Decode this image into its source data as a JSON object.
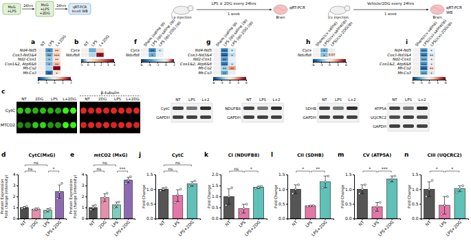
{
  "chart_data": [
    {
      "type": "heatmap",
      "panel": "a",
      "rows": [
        "Nd4-Nd5",
        "Cox3-Nd3&4",
        "Nd2-Cox1",
        "Cox1&2, Atp6&8",
        "Mt-Co2",
        "Mt-Co3"
      ],
      "columns": [
        "NT",
        "LPS",
        "L+2DG"
      ],
      "cells": [
        [
          0,
          -1.2,
          0.4
        ],
        [
          0,
          -1.0,
          0.5
        ],
        [
          0,
          -0.8,
          0.3
        ],
        [
          0,
          -0.9,
          0.6
        ],
        [
          0,
          -0.6,
          1.8
        ],
        [
          0,
          -1.5,
          0.3
        ]
      ],
      "annotations": [
        [
          null,
          "*",
          "**"
        ],
        [
          null,
          "**",
          "***"
        ],
        [
          null,
          "*",
          "**"
        ],
        [
          null,
          "*",
          "**"
        ],
        [
          null,
          null,
          "***"
        ],
        [
          null,
          "**",
          "*"
        ]
      ],
      "colorbar": {
        "range": [
          -2,
          2
        ],
        "ticks": [
          -2,
          -1,
          0,
          1,
          2
        ]
      }
    },
    {
      "type": "heatmap",
      "panel": "b",
      "rows": [
        "Cycs",
        "Ndufb8"
      ],
      "columns": [
        "NT",
        "LPS",
        "L+2DG"
      ],
      "cells": [
        [
          0,
          -0.5,
          0.8
        ],
        [
          0,
          -0.3,
          3.5
        ]
      ],
      "annotations": [
        [
          null,
          null,
          null
        ],
        [
          null,
          null,
          "*"
        ]
      ],
      "colorbar": {
        "range": [
          -1,
          4
        ],
        "ticks": [
          -1,
          0,
          1,
          2,
          3,
          4
        ]
      }
    },
    {
      "type": "heatmap",
      "panel": "f",
      "rows": [
        "Cycs",
        "Ndufb8"
      ],
      "columns": [
        "Sham (saline ip)",
        "LPS (ip)-saline (ip)",
        "LPS (ip)-2DG (ip)"
      ],
      "cells": [
        [
          0,
          -4,
          -1
        ],
        [
          0,
          -3,
          -0.5
        ]
      ],
      "annotations": [
        [
          null,
          "**",
          "*"
        ],
        [
          null,
          "*",
          null
        ]
      ],
      "colorbar": {
        "range": [
          -6,
          2
        ],
        "ticks": [
          -6,
          -4,
          -2,
          0,
          2
        ]
      }
    },
    {
      "type": "heatmap",
      "panel": "g",
      "rows": [
        "Nd4-Nd5",
        "Cox3-Nd3&4",
        "Nd2-Cox1",
        "Cox1&2, Atp6&8",
        "Mt-Co2",
        "Mt-Co3"
      ],
      "columns": [
        "Sham (saline ip)",
        "LPS (ip)-saline (ip)",
        "LPS (ip)-2DG (ip)"
      ],
      "cells": [
        [
          0,
          -4,
          -1
        ],
        [
          0,
          -4.5,
          -1.5
        ],
        [
          0,
          -3.5,
          -0.5
        ],
        [
          0,
          -4,
          -1
        ],
        [
          0,
          -2,
          2.5
        ],
        [
          0,
          -3,
          -0.5
        ]
      ],
      "annotations": [
        [
          null,
          "***",
          "*"
        ],
        [
          null,
          "***",
          "*"
        ],
        [
          null,
          "**",
          null
        ],
        [
          null,
          "***",
          "*"
        ],
        [
          null,
          "**",
          "**"
        ],
        [
          null,
          "**",
          null
        ]
      ],
      "colorbar": {
        "range": [
          -6,
          6
        ],
        "ticks": [
          -6,
          -3,
          0,
          3,
          6
        ]
      }
    },
    {
      "type": "heatmap",
      "panel": "h",
      "rows": [
        "Cycs",
        "Ndufb8"
      ],
      "columns": [
        "Sham(icv saline)",
        "LPS(icv)-saline(ip)",
        "LPS(icv)-2DG(ip)"
      ],
      "cells": [
        [
          0,
          -3,
          -0.5
        ],
        [
          0,
          -2.5,
          1
        ]
      ],
      "annotations": [
        [
          null,
          "*",
          null
        ],
        [
          null,
          "*",
          "0.07"
        ]
      ],
      "colorbar": {
        "range": [
          -6,
          6
        ],
        "ticks": [
          -6,
          -3,
          0,
          3,
          6
        ]
      }
    },
    {
      "type": "heatmap",
      "panel": "i",
      "rows": [
        "Nd4-Nd5",
        "Cox3-Nd3&4",
        "Nd2-Cox1",
        "Cox1&2, Atp6&8",
        "Mt-Co2",
        "Mt-Co3"
      ],
      "columns": [
        "Sham(icv saline)",
        "LPS(icv)-saline(ip)",
        "LPS(icv)-2DG(ip)"
      ],
      "cells": [
        [
          0,
          -3.5,
          -0.5
        ],
        [
          0,
          -4,
          -1
        ],
        [
          0,
          -3,
          0.5
        ],
        [
          0,
          -3.5,
          -0.5
        ],
        [
          0,
          -4.5,
          1
        ],
        [
          0,
          -3,
          -0.8
        ]
      ],
      "annotations": [
        [
          null,
          "***",
          "*"
        ],
        [
          null,
          "***",
          "**"
        ],
        [
          null,
          "***",
          "*"
        ],
        [
          null,
          "***",
          "*"
        ],
        [
          null,
          "***",
          "**"
        ],
        [
          null,
          "***",
          "*"
        ]
      ],
      "colorbar": {
        "range": [
          -6,
          6
        ],
        "ticks": [
          -6,
          -3,
          0,
          3,
          6
        ]
      }
    },
    {
      "type": "bar",
      "panel": "d",
      "title": "CytC(MxG)",
      "ylabel": [
        "Protein Expression",
        "Fold change (intensity)"
      ],
      "categories": [
        "NT",
        "2DG",
        "LPS",
        "LPS+2DG"
      ],
      "values": [
        1.0,
        0.85,
        0.75,
        2.45
      ],
      "errors": [
        0.1,
        0.1,
        0.15,
        0.6
      ],
      "points": [
        [
          0.9,
          1.0,
          1.1
        ],
        [
          0.8,
          0.85,
          0.9
        ],
        [
          0.6,
          0.75,
          0.9
        ],
        [
          1.8,
          2.4,
          3.2
        ]
      ],
      "colors": [
        "#4d4d4d",
        "#e68fac",
        "#7fcdbb",
        "#8e6bb0"
      ],
      "ylim": [
        0,
        4
      ],
      "yticks": [
        0,
        1,
        2,
        3,
        4
      ],
      "significance": [
        {
          "from": "NT",
          "to": "LPS",
          "label": "ns"
        },
        {
          "from": "NT",
          "to": "2DG",
          "label": "ns"
        },
        {
          "from": "LPS",
          "to": "LPS+2DG",
          "label": "*"
        }
      ]
    },
    {
      "type": "bar",
      "panel": "e",
      "title": "mtCO2 (MxG)",
      "ylabel": [
        "Protein Expression",
        "Fold change (intensity)"
      ],
      "categories": [
        "NT",
        "2DG",
        "LPS",
        "LPS+2DG"
      ],
      "values": [
        1.0,
        1.9,
        1.25,
        3.5
      ],
      "errors": [
        0.2,
        0.35,
        0.25,
        0.25
      ],
      "points": [
        [
          0.8,
          1.0,
          1.2
        ],
        [
          1.5,
          1.9,
          2.3
        ],
        [
          1.0,
          1.25,
          1.5
        ],
        [
          3.2,
          3.5,
          3.8
        ]
      ],
      "colors": [
        "#4d4d4d",
        "#e68fac",
        "#7fcdbb",
        "#8e6bb0"
      ],
      "ylim": [
        0,
        4
      ],
      "yticks": [
        0,
        1,
        2,
        3,
        4
      ],
      "significance": [
        {
          "from": "NT",
          "to": "LPS",
          "label": "ns"
        },
        {
          "from": "NT",
          "to": "2DG",
          "label": "ns"
        },
        {
          "from": "LPS",
          "to": "LPS+2DG",
          "label": "***"
        }
      ]
    },
    {
      "type": "bar",
      "panel": "j",
      "title": "CytC",
      "ylabel": [
        "Fold Change"
      ],
      "categories": [
        "NT",
        "LPS",
        "LPS+2DG"
      ],
      "values": [
        1.0,
        0.78,
        1.18
      ],
      "errors": [
        0.05,
        0.2,
        0.08
      ],
      "points": [
        [
          0.95,
          1.0,
          1.05
        ],
        [
          0.55,
          0.8,
          1.0
        ],
        [
          1.1,
          1.18,
          1.28
        ]
      ],
      "colors": [
        "#555555",
        "#e377a8",
        "#5fc1b8"
      ],
      "ylim": [
        0,
        1.5
      ],
      "yticks": [
        {
          "value": 0,
          "label": "0.0"
        },
        0.5,
        {
          "value": 1,
          "label": "1.0"
        },
        1.5
      ],
      "significance": [
        {
          "from": "NT",
          "to": "LPS",
          "label": "ns"
        },
        {
          "from": "NT",
          "to": "LPS+2DG",
          "label": "ns"
        }
      ]
    },
    {
      "type": "bar",
      "panel": "k",
      "title": "CI (NDUFB8)",
      "ylabel": [
        "Fold Change"
      ],
      "categories": [
        "NT",
        "LPS",
        "LPS+2DG"
      ],
      "values": [
        1.0,
        0.45,
        1.42
      ],
      "errors": [
        0.35,
        0.2,
        0.05
      ],
      "points": [
        [
          0.6,
          1.0,
          1.4
        ],
        [
          0.25,
          0.45,
          0.65
        ],
        [
          1.38,
          1.42,
          1.47
        ]
      ],
      "colors": [
        "#555555",
        "#e377a8",
        "#5fc1b8"
      ],
      "ylim": [
        0,
        2
      ],
      "yticks": [
        {
          "value": 0,
          "label": "0.0"
        },
        0.5,
        {
          "value": 1,
          "label": "1.0"
        },
        1.5,
        {
          "value": 2,
          "label": "2.0"
        }
      ],
      "significance": [
        {
          "from": "NT",
          "to": "LPS",
          "label": "ns"
        },
        {
          "from": "LPS",
          "to": "LPS+2DG",
          "label": "*"
        }
      ]
    },
    {
      "type": "bar",
      "panel": "l",
      "title": "CII (SDHB)",
      "ylabel": [
        "Fold Change"
      ],
      "categories": [
        "NT",
        "LPS",
        "LPS+2DG"
      ],
      "values": [
        1.0,
        0.43,
        1.25
      ],
      "errors": [
        0.15,
        0.02,
        0.2
      ],
      "points": [
        [
          0.85,
          1.0,
          1.15
        ],
        [
          0.41,
          0.43,
          0.45
        ],
        [
          1.05,
          1.25,
          1.45
        ]
      ],
      "colors": [
        "#555555",
        "#e377a8",
        "#5fc1b8"
      ],
      "ylim": [
        0,
        1.5
      ],
      "yticks": [
        {
          "value": 0,
          "label": "0.0"
        },
        0.5,
        {
          "value": 1,
          "label": "1.0"
        },
        1.5
      ],
      "significance": [
        {
          "from": "NT",
          "to": "LPS",
          "label": "*"
        },
        {
          "from": "LPS",
          "to": "LPS+2DG",
          "label": "**"
        }
      ]
    },
    {
      "type": "bar",
      "panel": "m",
      "title": "CV (ATP5A)",
      "ylabel": [
        "Fold Change"
      ],
      "categories": [
        "NT",
        "LPS",
        "LPS+2DG"
      ],
      "values": [
        1.0,
        0.4,
        1.35
      ],
      "errors": [
        0.15,
        0.15,
        0.1
      ],
      "points": [
        [
          0.85,
          1.0,
          1.15
        ],
        [
          0.25,
          0.4,
          0.55
        ],
        [
          1.25,
          1.35,
          1.45
        ]
      ],
      "colors": [
        "#555555",
        "#e377a8",
        "#5fc1b8"
      ],
      "ylim": [
        0,
        1.5
      ],
      "yticks": [
        {
          "value": 0,
          "label": "0.0"
        },
        0.5,
        {
          "value": 1,
          "label": "1.0"
        },
        1.5
      ],
      "significance": [
        {
          "from": "NT",
          "to": "LPS",
          "label": "*"
        },
        {
          "from": "LPS",
          "to": "LPS+2DG",
          "label": "***"
        }
      ]
    },
    {
      "type": "bar",
      "panel": "n",
      "title": "CIII (UQCRC2)",
      "ylabel": [
        "Fold Change"
      ],
      "categories": [
        "NT",
        "LPS",
        "LPS+2DG"
      ],
      "values": [
        1.0,
        0.45,
        1.02
      ],
      "errors": [
        0.25,
        0.3,
        0.1
      ],
      "points": [
        [
          0.75,
          1.0,
          1.3
        ],
        [
          0.15,
          0.45,
          0.75
        ],
        [
          0.9,
          1.02,
          1.12
        ]
      ],
      "colors": [
        "#555555",
        "#e377a8",
        "#5fc1b8"
      ],
      "ylim": [
        0,
        1.5
      ],
      "yticks": [
        {
          "value": 0,
          "label": "0.0"
        },
        0.5,
        {
          "value": 1,
          "label": "1.0"
        },
        1.5
      ],
      "significance": [
        {
          "from": "NT",
          "to": "LPS",
          "label": "*"
        },
        {
          "from": "LPS",
          "to": "LPS+2DG",
          "label": "*"
        }
      ]
    }
  ],
  "schematics": [
    {
      "steps": [
        [
          "MxG",
          "+LPS"
        ],
        [
          "MxG",
          "+LPS",
          "+2DG"
        ],
        [
          "qRT-PCR",
          "Incell WB"
        ]
      ],
      "intervals": [
        "24hrs",
        "24hrs"
      ]
    },
    {
      "treatment": "LPS ± 2DG every 24hrs",
      "route": "i.p injection",
      "duration": "1 week",
      "organ": "Brain",
      "assay": [
        "qRT-PCR"
      ]
    },
    {
      "treatment": "Vehicle/2DG every 24hrs",
      "route": "icv injection",
      "duration": "1 week",
      "organ": "Brain",
      "assay": [
        "qRT-PCR",
        "WB"
      ]
    }
  ],
  "panel_c": {
    "panel": "c",
    "columns": [
      "NT",
      "2DG",
      "LPS",
      "L+2DG"
    ],
    "rows": [
      "CytC",
      "MTCO2"
    ],
    "stain": "β-tubulin"
  },
  "blots": [
    {
      "proteins": [
        "CytC",
        "GAPDH"
      ],
      "lanes": [
        "NT",
        "LPS",
        "L+2"
      ]
    },
    {
      "proteins": [
        "NDUFB8",
        "GAPDH"
      ],
      "lanes": [
        "NT",
        "LPS",
        "L+2"
      ]
    },
    {
      "proteins": [
        "SDHB",
        "GAPDH"
      ],
      "lanes": [
        "NT",
        "LPS",
        "L+2"
      ]
    },
    {
      "proteins": [
        "ATP5A",
        "UQCRC2",
        "GAPDH"
      ],
      "lanes": [
        "NT",
        "LPS",
        "L+2"
      ]
    }
  ]
}
